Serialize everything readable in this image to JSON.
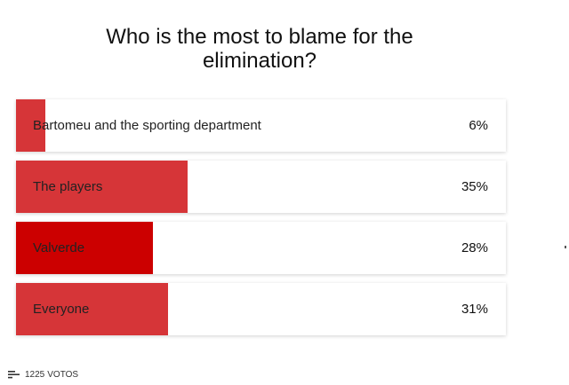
{
  "poll": {
    "question": "Who is the most to blame for the elimination?",
    "options": [
      {
        "label": "Bartomeu and the sporting department",
        "percent": 6,
        "percent_label": "6%",
        "fill_color": "#d63538"
      },
      {
        "label": "The players",
        "percent": 35,
        "percent_label": "35%",
        "fill_color": "#d63538"
      },
      {
        "label": "Valverde",
        "percent": 28,
        "percent_label": "28%",
        "fill_color": "#cc0000"
      },
      {
        "label": "Everyone",
        "percent": 31,
        "percent_label": "31%",
        "fill_color": "#d63538"
      }
    ],
    "votes": {
      "count": "1225",
      "label": "VOTOS",
      "icon": "bar-list-icon"
    }
  }
}
